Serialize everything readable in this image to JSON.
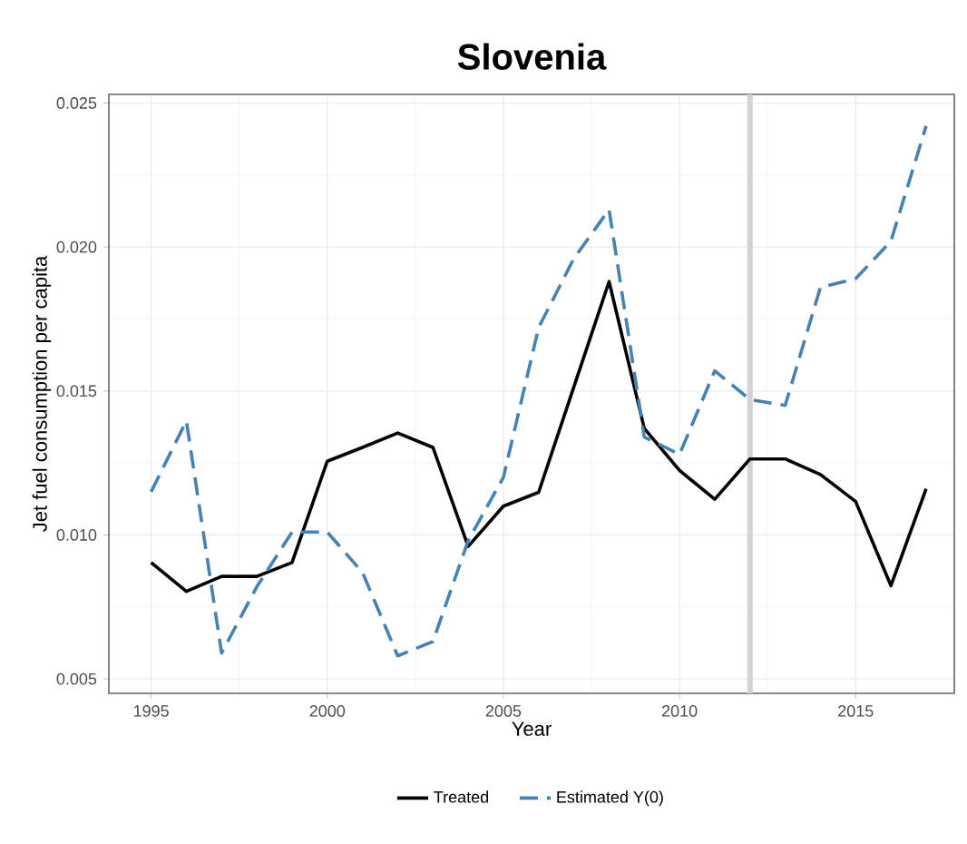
{
  "chart_data": {
    "type": "line",
    "title": "Slovenia",
    "xlabel": "Year",
    "ylabel": "Jet fuel consumption per capita",
    "x": [
      1995,
      1996,
      1997,
      1998,
      1999,
      2000,
      2001,
      2002,
      2003,
      2004,
      2005,
      2006,
      2007,
      2008,
      2009,
      2010,
      2011,
      2012,
      2013,
      2014,
      2015,
      2016,
      2017
    ],
    "series": [
      {
        "name": "Treated",
        "color": "#000000",
        "line_style": "solid",
        "values": [
          0.00904,
          0.00804,
          0.00856,
          0.00856,
          0.00904,
          0.01256,
          0.01304,
          0.01354,
          0.01304,
          0.0096,
          0.011,
          0.01148,
          0.01514,
          0.0188,
          0.0137,
          0.01224,
          0.01124,
          0.01264,
          0.01264,
          0.0121,
          0.01116,
          0.00824,
          0.0116
        ]
      },
      {
        "name": "Estimated Y(0)",
        "color": "#4682b4",
        "line_style": "dashed",
        "values": [
          0.0115,
          0.01396,
          0.0059,
          0.0082,
          0.0101,
          0.0101,
          0.0087,
          0.0058,
          0.0063,
          0.0098,
          0.012,
          0.0172,
          0.0196,
          0.0213,
          0.0134,
          0.0128,
          0.0157,
          0.0147,
          0.0145,
          0.0186,
          0.0189,
          0.0202,
          0.0242
        ]
      }
    ],
    "xlim": [
      1993.8,
      2017.8
    ],
    "ylim": [
      0.0045,
      0.0253
    ],
    "xticks": [
      1995,
      2000,
      2005,
      2010,
      2015
    ],
    "yticks": [
      {
        "value": 0.005,
        "label": "0.005"
      },
      {
        "value": 0.01,
        "label": "0.010"
      },
      {
        "value": 0.015,
        "label": "0.015"
      },
      {
        "value": 0.02,
        "label": "0.020"
      },
      {
        "value": 0.025,
        "label": "0.025"
      }
    ],
    "ref_lines": [
      {
        "axis": "x",
        "value": 2012,
        "color": "#d3d3d3"
      }
    ],
    "grid": true,
    "legend": "bottom",
    "marker": "none"
  }
}
